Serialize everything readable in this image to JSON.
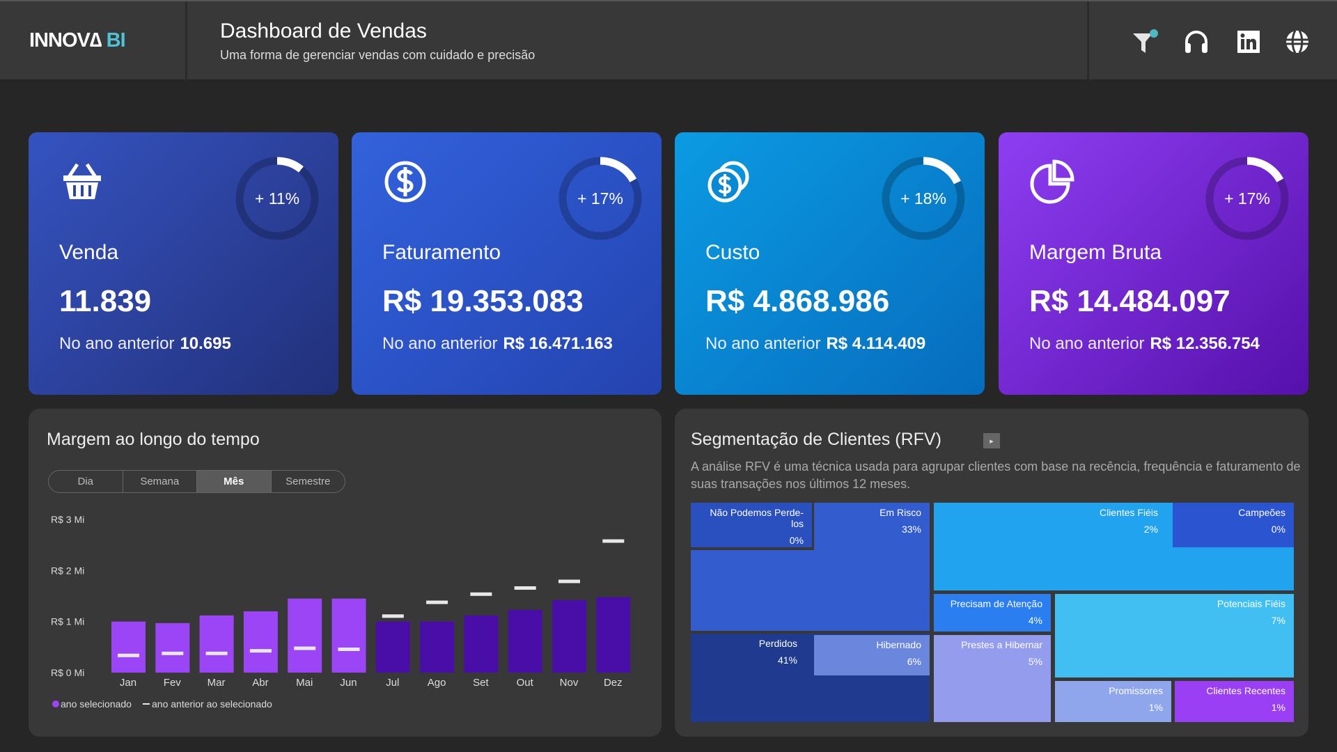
{
  "header": {
    "logo_main": "INNOV∆",
    "logo_accent": "BI",
    "title": "Dashboard de Vendas",
    "subtitle": "Uma forma de gerenciar vendas com cuidado e precisão",
    "icons": [
      "filter-icon",
      "headset-icon",
      "linkedin-icon",
      "globe-icon"
    ],
    "filter_dot_color": "#4fb8c4"
  },
  "cards": [
    {
      "label": "Venda",
      "value": "11.839",
      "prev_label": "No ano anterior",
      "prev_value": "10.695",
      "change": "+ 11%",
      "change_pct": 11,
      "icon": "basket-icon",
      "colors": [
        "#3553c0",
        "#22307a"
      ]
    },
    {
      "label": "Faturamento",
      "value": "R$ 19.353.083",
      "prev_label": "No ano anterior",
      "prev_value": "R$ 16.471.163",
      "change": "+ 17%",
      "change_pct": 17,
      "icon": "dollar-circle-icon",
      "colors": [
        "#3262dc",
        "#2443b0"
      ]
    },
    {
      "label": "Custo",
      "value": "R$ 4.868.986",
      "prev_label": "No ano anterior",
      "prev_value": "R$ 4.114.409",
      "change": "+ 18%",
      "change_pct": 18,
      "icon": "coins-icon",
      "colors": [
        "#0b9be2",
        "#066cbd"
      ]
    },
    {
      "label": "Margem Bruta",
      "value": "R$ 14.484.097",
      "prev_label": "No ano anterior",
      "prev_value": "R$ 12.356.754",
      "change": "+ 17%",
      "change_pct": 17,
      "icon": "pie-chart-icon",
      "colors": [
        "#8e3ef2",
        "#5510ab"
      ]
    }
  ],
  "margin_panel": {
    "title": "Margem ao longo do tempo",
    "tabs": [
      "Dia",
      "Semana",
      "Mês",
      "Semestre"
    ],
    "active_tab": "Mês"
  },
  "chart_data": {
    "type": "bar",
    "categories": [
      "Jan",
      "Fev",
      "Mar",
      "Abr",
      "Mai",
      "Jun",
      "Jul",
      "Ago",
      "Set",
      "Out",
      "Nov",
      "Dez"
    ],
    "series": [
      {
        "name": "ano selecionado",
        "values": [
          1.0,
          0.97,
          1.12,
          1.2,
          1.45,
          1.45,
          1.0,
          1.0,
          1.12,
          1.23,
          1.42,
          1.48
        ],
        "colors": [
          "#9b45f7",
          "#9b45f7",
          "#9b45f7",
          "#9b45f7",
          "#9b45f7",
          "#9b45f7",
          "#4a0ea8",
          "#4a0ea8",
          "#4a0ea8",
          "#4a0ea8",
          "#4a0ea8",
          "#4a0ea8"
        ]
      },
      {
        "name": "ano anterior ao selecionado",
        "values": [
          0.33,
          0.37,
          0.37,
          0.42,
          0.47,
          0.45,
          1.1,
          1.37,
          1.53,
          1.65,
          1.78,
          2.57
        ],
        "color": "#e8e8e8"
      }
    ],
    "unit": "R$ Mi",
    "yticks": [
      "R$ 0 Mi",
      "R$ 1 Mi",
      "R$ 2 Mi",
      "R$ 3 Mi"
    ],
    "ylim": [
      0,
      3
    ],
    "grid": false,
    "legend_position": "bottom-left"
  },
  "rfv_panel": {
    "title": "Segmentação de Clientes (RFV)",
    "description": "A análise RFV é uma técnica usada para agrupar clientes com base na recência, frequência e faturamento de suas transações nos últimos 12 meses.",
    "play_icon": "▸",
    "segments": [
      {
        "name": "Não Podemos Perde-los",
        "pct": "0%",
        "color": "#2a4fbf"
      },
      {
        "name": "Em Risco",
        "pct": "33%",
        "color": "#335ccf"
      },
      {
        "name": "Perdidos",
        "pct": "41%",
        "color": "#1f3a8f"
      },
      {
        "name": "Hibernado",
        "pct": "6%",
        "color": "#6b86dd"
      },
      {
        "name": "Clientes Fiéis",
        "pct": "2%",
        "color": "#22a3ef"
      },
      {
        "name": "Campeões",
        "pct": "0%",
        "color": "#2b55d0"
      },
      {
        "name": "Precisam de Atenção",
        "pct": "4%",
        "color": "#2a7ef0"
      },
      {
        "name": "Prestes a Hibernar",
        "pct": "5%",
        "color": "#939ced"
      },
      {
        "name": "Potenciais Fiéis",
        "pct": "7%",
        "color": "#42bff2"
      },
      {
        "name": "Promissores",
        "pct": "1%",
        "color": "#8fa6ec"
      },
      {
        "name": "Clientes Recentes",
        "pct": "1%",
        "color": "#9b3ff5"
      }
    ]
  }
}
